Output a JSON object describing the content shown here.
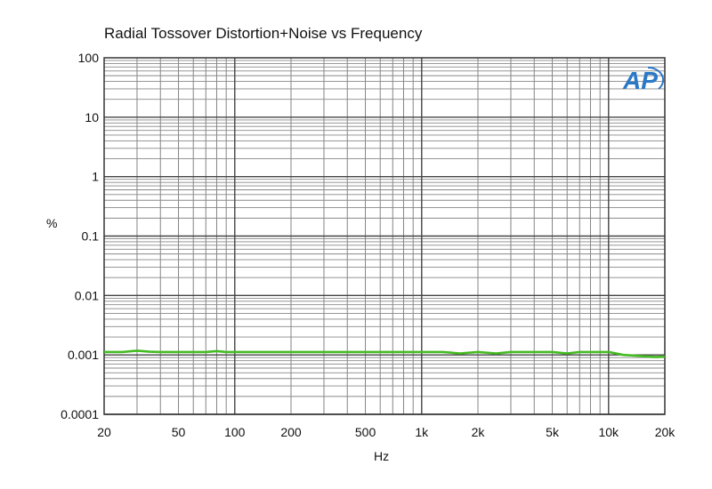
{
  "chart_data": {
    "type": "line",
    "title": "Radial Tossover Distortion+Noise vs Frequency",
    "xlabel": "Hz",
    "ylabel": "%",
    "x_scale": "log",
    "y_scale": "log",
    "xlim": [
      20,
      20000
    ],
    "ylim": [
      0.0001,
      100
    ],
    "x_ticks": [
      20,
      50,
      100,
      200,
      500,
      1000,
      2000,
      5000,
      10000,
      20000
    ],
    "x_tick_labels": [
      "20",
      "50",
      "100",
      "200",
      "500",
      "1k",
      "2k",
      "5k",
      "10k",
      "20k"
    ],
    "y_ticks": [
      0.0001,
      0.001,
      0.01,
      0.1,
      1,
      10,
      100
    ],
    "y_tick_labels": [
      "0.0001",
      "0.001",
      "0.01",
      "0.1",
      "1",
      "10",
      "100"
    ],
    "grid": true,
    "series": [
      {
        "color": "#44bb22",
        "x": [
          20,
          25,
          30,
          35,
          40,
          50,
          60,
          70,
          80,
          90,
          100,
          150,
          200,
          300,
          500,
          700,
          1000,
          1300,
          1600,
          2000,
          2500,
          3000,
          4000,
          5000,
          6000,
          7000,
          8000,
          10000,
          12000,
          14000,
          16000,
          18000,
          20000
        ],
        "y": [
          0.00112,
          0.00112,
          0.00118,
          0.00113,
          0.00112,
          0.00112,
          0.00112,
          0.00112,
          0.00116,
          0.00112,
          0.00112,
          0.00112,
          0.00112,
          0.00112,
          0.00112,
          0.00112,
          0.00112,
          0.00112,
          0.00106,
          0.00112,
          0.00106,
          0.00112,
          0.00112,
          0.00112,
          0.00106,
          0.00112,
          0.00112,
          0.00112,
          0.001,
          0.00097,
          0.00094,
          0.00092,
          0.00094
        ]
      }
    ]
  },
  "logo": {
    "text": "AP",
    "color": "#2a78c8"
  }
}
